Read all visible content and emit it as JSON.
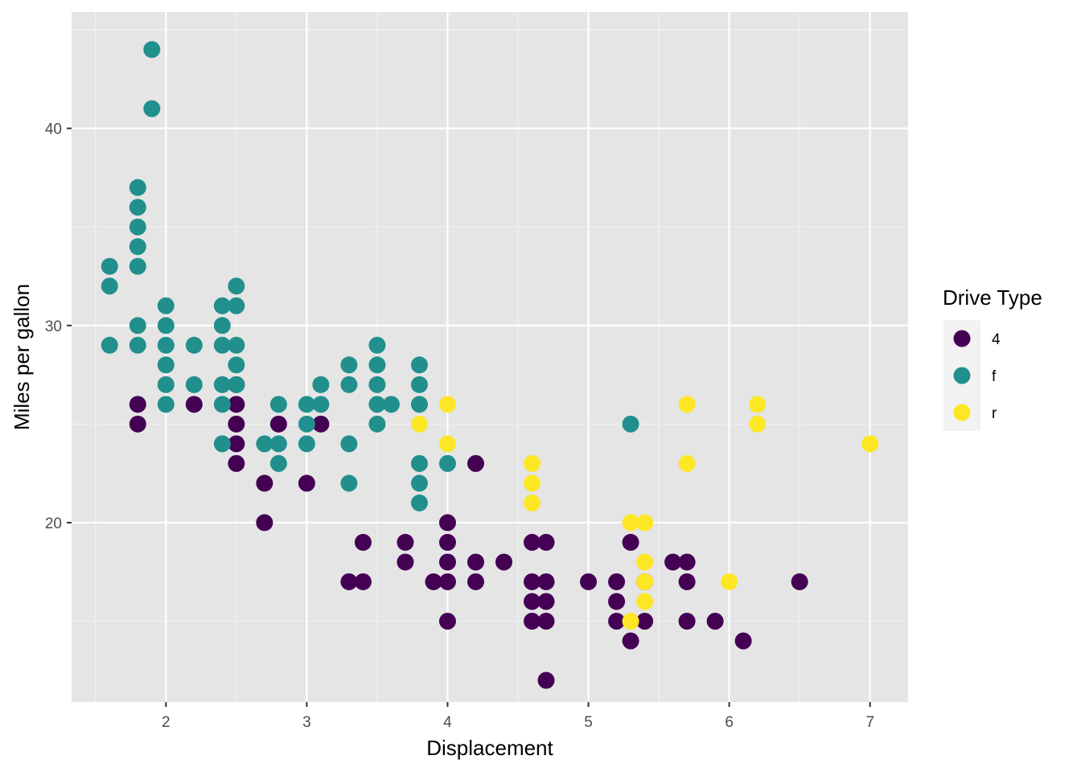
{
  "chart_data": {
    "type": "scatter",
    "title": "",
    "xlabel": "Displacement",
    "ylabel": "Miles per gallon",
    "xlim": [
      1.33,
      7.27
    ],
    "ylim": [
      10.9,
      45.9
    ],
    "x_ticks": [
      2,
      3,
      4,
      5,
      6,
      7
    ],
    "x_tick_labels": [
      "2",
      "3",
      "4",
      "5",
      "6",
      "7"
    ],
    "y_ticks": [
      20,
      30,
      40
    ],
    "y_tick_labels": [
      "20",
      "30",
      "40"
    ],
    "grid": true,
    "panel_background": "#e5e5e5",
    "legend": {
      "title": "Drive Type",
      "placement": "right",
      "entries": [
        "4",
        "f",
        "r"
      ]
    },
    "colors": {
      "4": "#440154",
      "f": "#21908c",
      "r": "#fde725"
    },
    "series": [
      {
        "name": "4",
        "points": [
          [
            1.8,
            26
          ],
          [
            1.8,
            25
          ],
          [
            2.2,
            26
          ],
          [
            2.5,
            27
          ],
          [
            2.5,
            26
          ],
          [
            2.5,
            25
          ],
          [
            2.5,
            24
          ],
          [
            2.5,
            23
          ],
          [
            2.7,
            22
          ],
          [
            2.7,
            20
          ],
          [
            2.8,
            25
          ],
          [
            3.0,
            22
          ],
          [
            3.1,
            25
          ],
          [
            3.3,
            17
          ],
          [
            3.4,
            19
          ],
          [
            3.4,
            17
          ],
          [
            3.7,
            19
          ],
          [
            3.7,
            18
          ],
          [
            3.9,
            17
          ],
          [
            4.0,
            20
          ],
          [
            4.0,
            19
          ],
          [
            4.0,
            18
          ],
          [
            4.0,
            17
          ],
          [
            4.0,
            15
          ],
          [
            4.2,
            23
          ],
          [
            4.2,
            18
          ],
          [
            4.2,
            17
          ],
          [
            4.4,
            18
          ],
          [
            4.6,
            19
          ],
          [
            4.6,
            17
          ],
          [
            4.6,
            16
          ],
          [
            4.6,
            15
          ],
          [
            4.7,
            19
          ],
          [
            4.7,
            17
          ],
          [
            4.7,
            16
          ],
          [
            4.7,
            15
          ],
          [
            4.7,
            12
          ],
          [
            5.0,
            17
          ],
          [
            5.2,
            17
          ],
          [
            5.2,
            16
          ],
          [
            5.2,
            15
          ],
          [
            5.3,
            19
          ],
          [
            5.3,
            14
          ],
          [
            5.4,
            17
          ],
          [
            5.4,
            15
          ],
          [
            5.6,
            18
          ],
          [
            5.7,
            18
          ],
          [
            5.7,
            17
          ],
          [
            5.7,
            15
          ],
          [
            5.9,
            15
          ],
          [
            6.1,
            14
          ],
          [
            6.5,
            17
          ]
        ]
      },
      {
        "name": "f",
        "points": [
          [
            1.6,
            33
          ],
          [
            1.6,
            32
          ],
          [
            1.6,
            29
          ],
          [
            1.8,
            37
          ],
          [
            1.8,
            36
          ],
          [
            1.8,
            35
          ],
          [
            1.8,
            34
          ],
          [
            1.8,
            33
          ],
          [
            1.8,
            30
          ],
          [
            1.8,
            29
          ],
          [
            1.9,
            44
          ],
          [
            1.9,
            41
          ],
          [
            2.0,
            31
          ],
          [
            2.0,
            30
          ],
          [
            2.0,
            29
          ],
          [
            2.0,
            28
          ],
          [
            2.0,
            27
          ],
          [
            2.0,
            26
          ],
          [
            2.2,
            29
          ],
          [
            2.2,
            27
          ],
          [
            2.4,
            31
          ],
          [
            2.4,
            30
          ],
          [
            2.4,
            29
          ],
          [
            2.4,
            27
          ],
          [
            2.4,
            26
          ],
          [
            2.4,
            24
          ],
          [
            2.5,
            32
          ],
          [
            2.5,
            31
          ],
          [
            2.5,
            29
          ],
          [
            2.5,
            28
          ],
          [
            2.5,
            27
          ],
          [
            2.7,
            24
          ],
          [
            2.8,
            26
          ],
          [
            2.8,
            24
          ],
          [
            2.8,
            23
          ],
          [
            3.0,
            26
          ],
          [
            3.0,
            25
          ],
          [
            3.0,
            24
          ],
          [
            3.1,
            27
          ],
          [
            3.1,
            26
          ],
          [
            3.3,
            28
          ],
          [
            3.3,
            27
          ],
          [
            3.3,
            24
          ],
          [
            3.3,
            22
          ],
          [
            3.5,
            29
          ],
          [
            3.5,
            28
          ],
          [
            3.5,
            27
          ],
          [
            3.5,
            26
          ],
          [
            3.5,
            25
          ],
          [
            3.6,
            26
          ],
          [
            3.8,
            28
          ],
          [
            3.8,
            27
          ],
          [
            3.8,
            26
          ],
          [
            3.8,
            23
          ],
          [
            3.8,
            22
          ],
          [
            3.8,
            21
          ],
          [
            4.0,
            23
          ],
          [
            5.3,
            25
          ]
        ]
      },
      {
        "name": "r",
        "points": [
          [
            3.8,
            25
          ],
          [
            4.0,
            26
          ],
          [
            4.0,
            24
          ],
          [
            4.6,
            23
          ],
          [
            4.6,
            22
          ],
          [
            4.6,
            21
          ],
          [
            5.3,
            20
          ],
          [
            5.3,
            15
          ],
          [
            5.4,
            20
          ],
          [
            5.4,
            18
          ],
          [
            5.4,
            17
          ],
          [
            5.4,
            16
          ],
          [
            5.7,
            26
          ],
          [
            5.7,
            23
          ],
          [
            6.0,
            17
          ],
          [
            6.2,
            26
          ],
          [
            6.2,
            25
          ],
          [
            7.0,
            24
          ]
        ]
      }
    ]
  }
}
